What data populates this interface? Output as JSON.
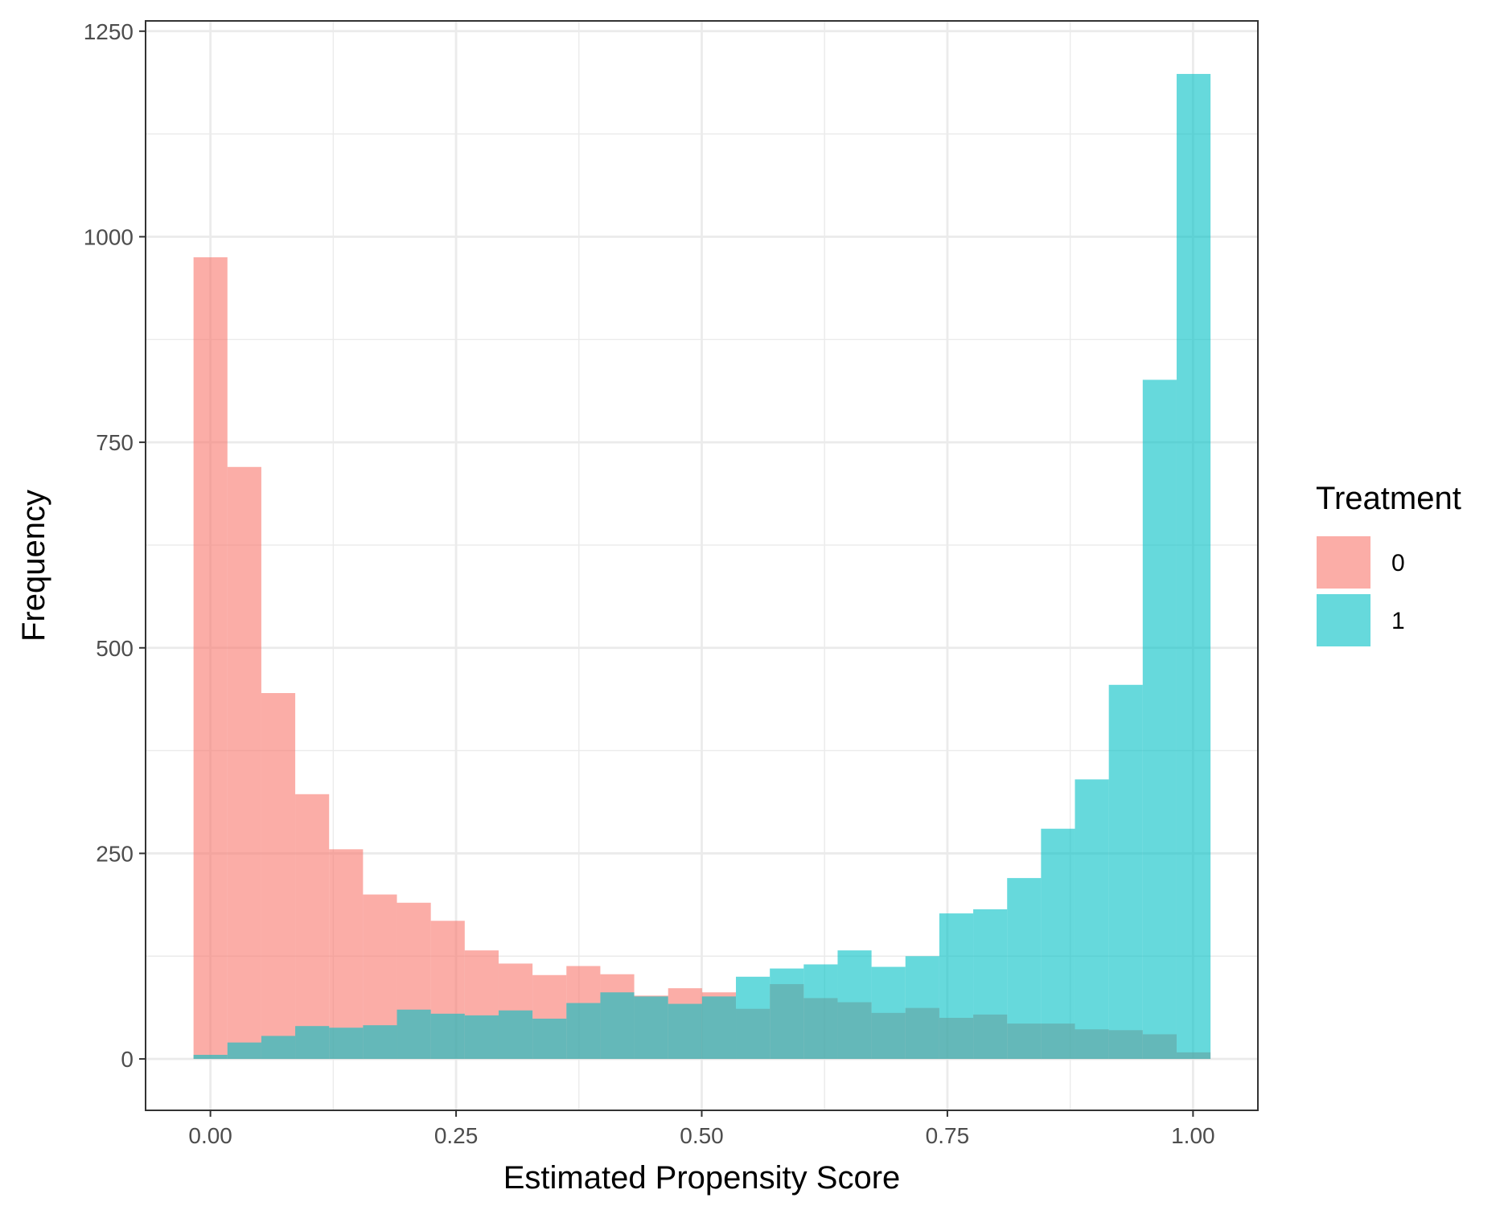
{
  "chart_data": {
    "type": "bar",
    "subtype": "overlaid-histogram",
    "xlabel": "Estimated Propensity Score",
    "ylabel": "Frequency",
    "xlim": [
      -0.066,
      1.066
    ],
    "ylim": [
      -62.5,
      1262.5
    ],
    "x_ticks": [
      0.0,
      0.25,
      0.5,
      0.75,
      1.0
    ],
    "x_tick_labels": [
      "0.00",
      "0.25",
      "0.50",
      "0.75",
      "1.00"
    ],
    "y_ticks": [
      0,
      250,
      500,
      750,
      1000,
      1250
    ],
    "y_tick_labels": [
      "0",
      "250",
      "500",
      "750",
      "1000",
      "1250"
    ],
    "grid": true,
    "legend_position": "right",
    "bin_start": -0.0172,
    "bin_width": 0.0345,
    "series": [
      {
        "name": "0",
        "color": "#F8766D",
        "values": [
          975,
          720,
          445,
          322,
          255,
          200,
          190,
          168,
          132,
          116,
          102,
          113,
          103,
          77,
          86,
          81,
          61,
          91,
          74,
          69,
          56,
          62,
          50,
          54,
          43,
          43,
          36,
          35,
          30,
          8
        ]
      },
      {
        "name": "1",
        "color": "#00BFC4",
        "values": [
          5,
          20,
          28,
          40,
          38,
          41,
          60,
          55,
          53,
          59,
          49,
          68,
          81,
          76,
          67,
          76,
          100,
          110,
          115,
          132,
          112,
          125,
          177,
          182,
          220,
          280,
          340,
          455,
          826,
          1198
        ]
      }
    ],
    "legend": {
      "title": "Treatment",
      "entries": [
        "0",
        "1"
      ]
    }
  }
}
